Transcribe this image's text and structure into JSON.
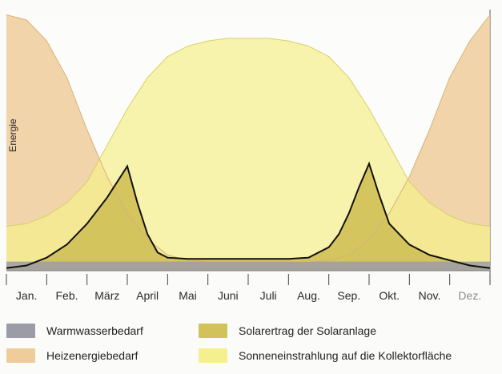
{
  "chart_data": {
    "type": "area",
    "title": "",
    "xlabel": "",
    "ylabel": "Energie",
    "categories": [
      "Jan.",
      "Feb.",
      "März",
      "April",
      "Mai",
      "Juni",
      "Juli",
      "Aug.",
      "Sep.",
      "Okt.",
      "Nov.",
      "Dez."
    ],
    "ylim": [
      0,
      100
    ],
    "grid": false,
    "legend_position": "bottom",
    "series": [
      {
        "name": "Warmwasserbedarf",
        "color": "#9c9ca6",
        "x": [
          0,
          12
        ],
        "y": [
          3.5,
          3.5
        ]
      },
      {
        "name": "Heizenergiebedarf",
        "color": "#efcd9b",
        "x": [
          0,
          0.5,
          1,
          1.5,
          2,
          2.5,
          3,
          3.5,
          4,
          4.5,
          5,
          5.5,
          6,
          6.5,
          7,
          7.5,
          8,
          8.5,
          9,
          9.5,
          10,
          10.5,
          11,
          11.5,
          12
        ],
        "y": [
          98,
          96,
          88,
          74,
          54,
          36,
          22,
          12,
          6,
          4,
          3.5,
          3.5,
          3.5,
          3.5,
          3.5,
          3.5,
          4,
          6,
          12,
          22,
          36,
          54,
          74,
          88,
          98
        ]
      },
      {
        "name": "Solarertrag der Solaranlage",
        "color": "#d2c25a",
        "x": [
          0,
          0.5,
          1,
          1.5,
          2,
          2.5,
          3,
          3.25,
          3.5,
          3.75,
          4,
          4.5,
          5,
          5.5,
          6,
          6.5,
          7,
          7.5,
          8,
          8.25,
          8.5,
          8.75,
          9,
          9.25,
          9.5,
          10,
          10.5,
          11,
          11.5,
          12
        ],
        "y": [
          1,
          2,
          5,
          10,
          18,
          28,
          40,
          26,
          14,
          7,
          5,
          4.5,
          4.5,
          4.5,
          4.5,
          4.5,
          4.5,
          5,
          9,
          14,
          22,
          32,
          41,
          29,
          18,
          10,
          6,
          4,
          2,
          1
        ]
      },
      {
        "name": "Sonneneinstrahlung auf die Kollektorfläche",
        "color": "#f5f08e",
        "x": [
          0,
          0.5,
          1,
          1.5,
          2,
          2.5,
          3,
          3.5,
          4,
          4.5,
          5,
          5.5,
          6,
          6.5,
          7,
          7.5,
          8,
          8.5,
          9,
          9.5,
          10,
          10.5,
          11,
          11.5,
          12
        ],
        "y": [
          17,
          18,
          21,
          26,
          34,
          48,
          62,
          74,
          82,
          86,
          88,
          89,
          89,
          89,
          88,
          86,
          82,
          74,
          62,
          48,
          34,
          26,
          21,
          18,
          17
        ]
      }
    ]
  }
}
